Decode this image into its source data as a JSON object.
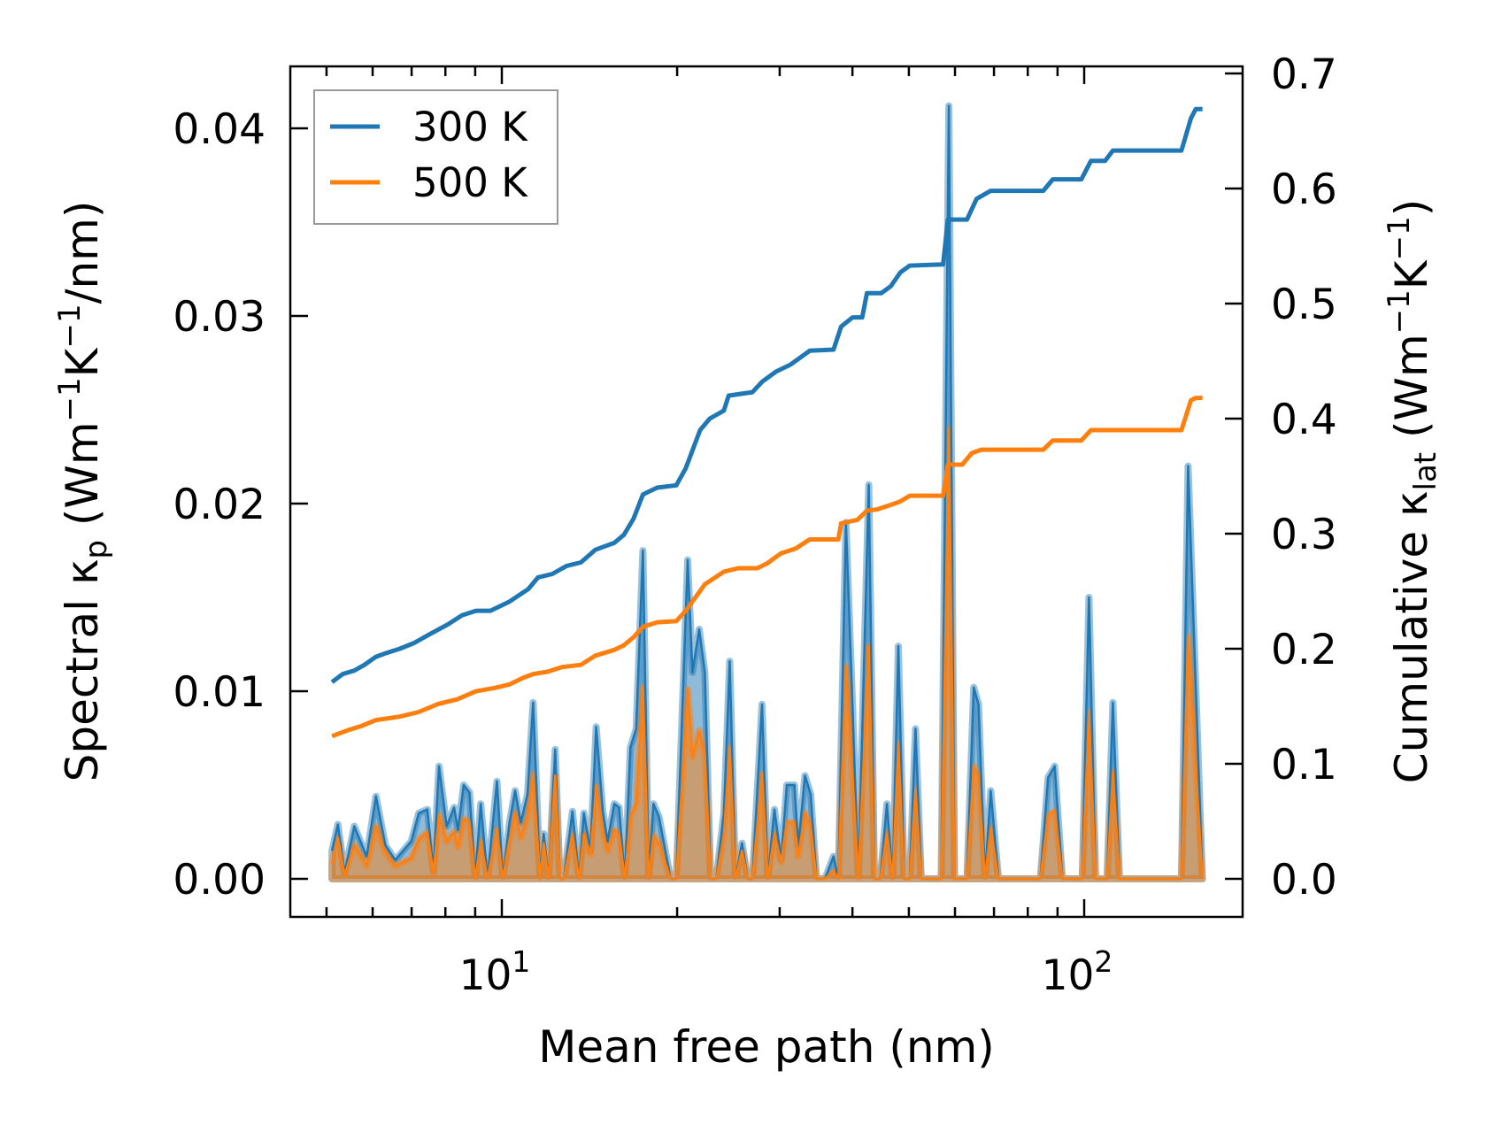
{
  "chart_data": {
    "type": "line",
    "xlabel": "Mean free path (nm)",
    "ylabel_left": {
      "parts": [
        "Spectral κ",
        "p",
        " (Wm",
        "−1",
        "K",
        "−1",
        "/nm)"
      ]
    },
    "ylabel_right": {
      "parts": [
        "Cumulative κ",
        "lat",
        " (Wm",
        "−1",
        "K",
        "−1",
        ")"
      ]
    },
    "xscale": "log",
    "xlim": [
      4.34,
      187
    ],
    "ylim_left": [
      -0.0021,
      0.0432
    ],
    "ylim_right": [
      0.0,
      0.7
    ],
    "x_ticks": [
      {
        "value": 10,
        "base": "10",
        "exp": "1"
      },
      {
        "value": 100,
        "base": "10",
        "exp": "2"
      }
    ],
    "y_left_ticks": [
      "0.00",
      "0.01",
      "0.02",
      "0.03",
      "0.04"
    ],
    "y_right_ticks": [
      "0.0",
      "0.1",
      "0.2",
      "0.3",
      "0.4",
      "0.5",
      "0.6",
      "0.7"
    ],
    "legend": {
      "position": "top-left",
      "entries": [
        "300 K",
        "500 K"
      ]
    },
    "colors": {
      "300 K": "#1f77b4",
      "500 K": "#ff7f0e"
    },
    "spectral": {
      "x": [
        5.11,
        5.23,
        5.37,
        5.58,
        5.86,
        6.08,
        6.31,
        6.56,
        6.99,
        7.2,
        7.45,
        7.63,
        7.8,
        8.04,
        8.28,
        8.41,
        8.6,
        8.8,
        9.0,
        9.2,
        9.45,
        9.81,
        10.04,
        10.31,
        10.54,
        10.78,
        11.07,
        11.32,
        11.63,
        11.8,
        12.03,
        12.35,
        12.58,
        12.78,
        13.22,
        13.57,
        13.83,
        14.2,
        14.52,
        14.91,
        15.19,
        15.6,
        15.9,
        16.26,
        16.63,
        17.01,
        17.47,
        17.87,
        18.21,
        18.62,
        19.49,
        19.93,
        20.85,
        21.25,
        21.82,
        22.32,
        22.83,
        23.35,
        24.06,
        24.62,
        25.18,
        25.85,
        26.44,
        26.94,
        27.98,
        28.62,
        29.38,
        30.17,
        30.86,
        31.8,
        32.28,
        33.15,
        33.91,
        34.69,
        35.88,
        37.12,
        37.83,
        38.98,
        40.03,
        40.94,
        42.67,
        43.64,
        44.65,
        45.84,
        46.89,
        47.96,
        49.06,
        50.18,
        51.33,
        52.5,
        56.82,
        58.56,
        59.89,
        62.93,
        64.61,
        65.84,
        67.56,
        69.11,
        71.23,
        84.11,
        86.68,
        88.99,
        91.71,
        99.25,
        101.9,
        104.6,
        109.5,
        112.0,
        115.0,
        146.9,
        150.8,
        159.6
      ],
      "series": [
        {
          "name": "300 K",
          "values": [
            0.0015,
            0.0029,
            0.0003,
            0.0028,
            0.0012,
            0.0044,
            0.0018,
            0.001,
            0.002,
            0.0035,
            0.0037,
            0.0004,
            0.006,
            0.0028,
            0.0038,
            0.0026,
            0.005,
            0.0046,
            0.0,
            0.004,
            0.0,
            0.0052,
            0.0,
            0.003,
            0.0047,
            0.003,
            0.0045,
            0.0094,
            0.0,
            0.0024,
            0.0,
            0.0069,
            0.0,
            0.0,
            0.0036,
            0.0,
            0.0035,
            0.0015,
            0.0081,
            0.0036,
            0.002,
            0.004,
            0.0038,
            0.0,
            0.007,
            0.008,
            0.0175,
            0.0,
            0.004,
            0.0033,
            0.0,
            0.0,
            0.017,
            0.011,
            0.0133,
            0.011,
            0.0,
            0.0,
            0.0035,
            0.0116,
            0.0,
            0.0019,
            0.0,
            0.0,
            0.0093,
            0.0,
            0.0037,
            0.001,
            0.005,
            0.005,
            0.0017,
            0.0055,
            0.0045,
            0.0,
            0.0,
            0.0012,
            0.0,
            0.019,
            0.009,
            0.0,
            0.021,
            0.0,
            0.0,
            0.004,
            0.0,
            0.0124,
            0.0,
            0.0,
            0.008,
            0.0,
            0.0,
            0.0412,
            0.0,
            0.0,
            0.0102,
            0.0093,
            0.0,
            0.0047,
            0.0,
            0.0,
            0.0054,
            0.006,
            0.0,
            0.0,
            0.015,
            0.0,
            0.0,
            0.0094,
            0.0,
            0.0,
            0.022,
            0.0
          ]
        },
        {
          "name": "500 K",
          "values": [
            0.0008,
            0.0022,
            0.0002,
            0.0018,
            0.0007,
            0.0028,
            0.0014,
            0.0007,
            0.0011,
            0.0021,
            0.0025,
            0.0003,
            0.0034,
            0.002,
            0.0025,
            0.0017,
            0.0032,
            0.003,
            0.0,
            0.002,
            0.0,
            0.0026,
            0.0,
            0.0021,
            0.0035,
            0.0022,
            0.0033,
            0.0056,
            0.0,
            0.0019,
            0.0,
            0.0055,
            0.0,
            0.0,
            0.0024,
            0.0,
            0.0024,
            0.0013,
            0.0049,
            0.0025,
            0.0015,
            0.0026,
            0.0024,
            0.0,
            0.0033,
            0.004,
            0.0102,
            0.0,
            0.0023,
            0.0019,
            0.0,
            0.0,
            0.0101,
            0.0065,
            0.0079,
            0.0066,
            0.0,
            0.0,
            0.0023,
            0.007,
            0.0,
            0.0015,
            0.0,
            0.0,
            0.0056,
            0.0,
            0.0024,
            0.0009,
            0.003,
            0.003,
            0.0012,
            0.0035,
            0.0028,
            0.0,
            0.0,
            0.0004,
            0.0,
            0.0113,
            0.0054,
            0.0,
            0.0124,
            0.0,
            0.0,
            0.0025,
            0.0,
            0.0072,
            0.0,
            0.0,
            0.0048,
            0.0,
            0.0,
            0.024,
            0.0,
            0.0,
            0.006,
            0.0054,
            0.0,
            0.0027,
            0.0,
            0.0,
            0.0034,
            0.0036,
            0.0,
            0.0,
            0.0089,
            0.0,
            0.0,
            0.0057,
            0.0,
            0.0,
            0.0129,
            0.0
          ]
        }
      ]
    },
    "cumulative": [
      {
        "name": "300 K",
        "x": [
          5.11,
          5.33,
          5.58,
          5.81,
          6.08,
          6.31,
          6.68,
          7.07,
          7.48,
          8.07,
          8.54,
          9.03,
          9.56,
          10.31,
          11.11,
          11.54,
          12.21,
          12.92,
          13.67,
          14.47,
          15.6,
          16.2,
          16.83,
          17.47,
          18.48,
          19.93,
          20.7,
          21.9,
          22.75,
          24.06,
          24.52,
          26.94,
          27.98,
          29.6,
          31.33,
          33.78,
          37.12,
          38.26,
          40.03,
          41.57,
          42.35,
          44.81,
          46.54,
          48.32,
          50.18,
          57.25,
          58.34,
          62.93,
          65.35,
          69.11,
          85.06,
          88.31,
          98.88,
          102.7,
          108.6,
          112.0,
          146.9,
          152.5,
          155.4,
          159.6
        ],
        "values": [
          0.171,
          0.178,
          0.181,
          0.186,
          0.193,
          0.196,
          0.2,
          0.205,
          0.212,
          0.221,
          0.229,
          0.233,
          0.233,
          0.241,
          0.252,
          0.262,
          0.265,
          0.272,
          0.275,
          0.286,
          0.292,
          0.299,
          0.313,
          0.334,
          0.34,
          0.342,
          0.357,
          0.39,
          0.4,
          0.407,
          0.42,
          0.423,
          0.432,
          0.441,
          0.447,
          0.459,
          0.46,
          0.48,
          0.488,
          0.488,
          0.509,
          0.509,
          0.515,
          0.527,
          0.533,
          0.534,
          0.573,
          0.573,
          0.591,
          0.598,
          0.598,
          0.608,
          0.608,
          0.624,
          0.624,
          0.633,
          0.633,
          0.661,
          0.669,
          0.669
        ]
      },
      {
        "name": "500 K",
        "x": [
          5.11,
          5.43,
          5.75,
          6.08,
          6.68,
          7.2,
          7.77,
          8.38,
          9.03,
          9.74,
          10.31,
          10.91,
          11.32,
          11.98,
          12.68,
          13.67,
          14.47,
          15.6,
          16.2,
          16.83,
          17.47,
          18.48,
          19.93,
          20.7,
          22.32,
          24.06,
          25.46,
          27.46,
          28.51,
          30.17,
          31.93,
          33.78,
          37.83,
          38.26,
          40.78,
          42.35,
          44.0,
          46.54,
          48.32,
          50.18,
          57.25,
          58.34,
          61.74,
          64.11,
          66.56,
          85.06,
          88.31,
          98.88,
          102.7,
          146.9,
          152.5,
          155.4,
          159.6
        ],
        "values": [
          0.124,
          0.129,
          0.133,
          0.138,
          0.141,
          0.145,
          0.152,
          0.156,
          0.163,
          0.166,
          0.169,
          0.175,
          0.178,
          0.18,
          0.184,
          0.186,
          0.194,
          0.199,
          0.203,
          0.21,
          0.219,
          0.223,
          0.224,
          0.233,
          0.256,
          0.267,
          0.27,
          0.27,
          0.274,
          0.283,
          0.287,
          0.295,
          0.295,
          0.309,
          0.312,
          0.32,
          0.321,
          0.325,
          0.328,
          0.333,
          0.333,
          0.36,
          0.36,
          0.37,
          0.373,
          0.373,
          0.381,
          0.381,
          0.39,
          0.39,
          0.416,
          0.418,
          0.418
        ]
      }
    ]
  }
}
